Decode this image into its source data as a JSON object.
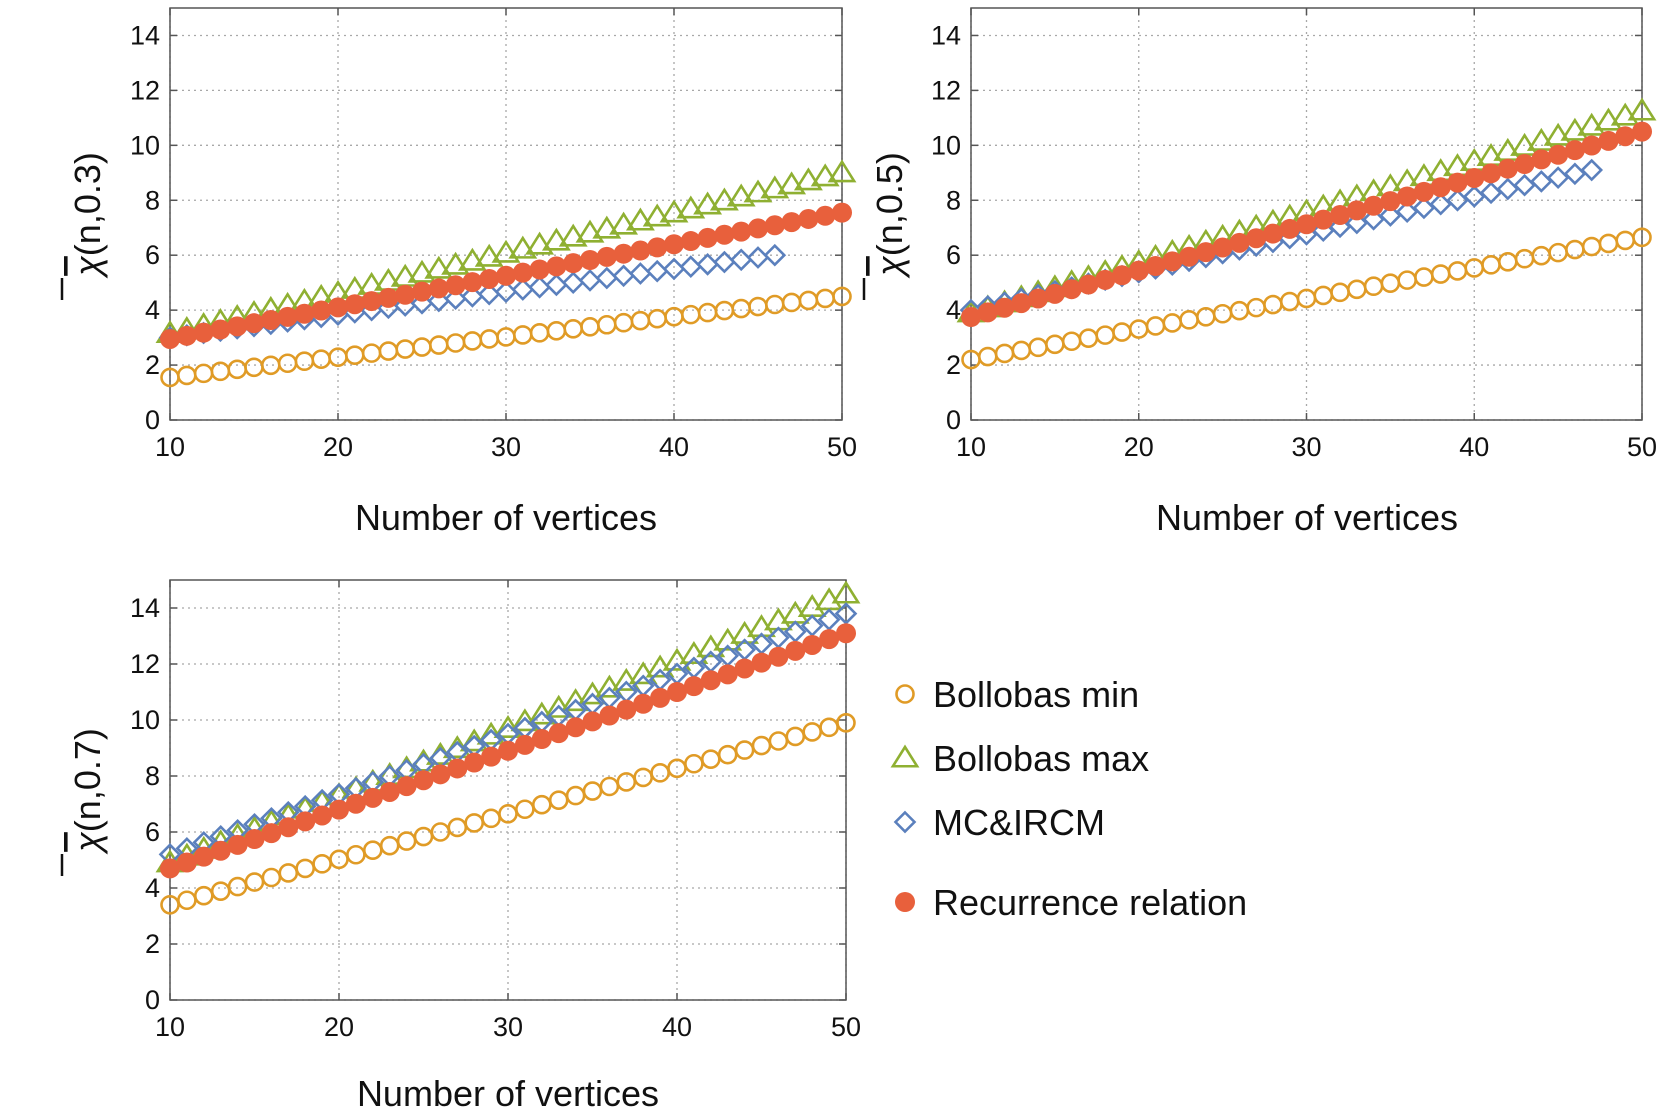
{
  "chart_data": [
    {
      "type": "scatter",
      "panel": "top-left",
      "xlabel": "Number of vertices",
      "ylabel": "χ̄(n,0.3)",
      "ylabel_symbol": "χ",
      "ylabel_args": "(n,0.3)",
      "xlim": [
        10,
        50
      ],
      "ylim": [
        0,
        15
      ],
      "xticks": [
        10,
        20,
        30,
        40,
        50
      ],
      "yticks": [
        0,
        2,
        4,
        6,
        8,
        10,
        12,
        14
      ],
      "grid": true,
      "series": [
        {
          "name": "Bollobas min",
          "x_start": 10,
          "x_end": 50,
          "y_start": 1.55,
          "y_end": 4.5
        },
        {
          "name": "Bollobas max",
          "x_start": 10,
          "x_end": 50,
          "y_start": 3.15,
          "y_end": 9.0
        },
        {
          "name": "MC&IRCM",
          "x_start": 10,
          "x_end": 46,
          "y_start": 3.0,
          "y_end": 6.0
        },
        {
          "name": "Recurrence relation",
          "x_start": 10,
          "x_end": 50,
          "y_start": 2.95,
          "y_end": 7.55
        }
      ]
    },
    {
      "type": "scatter",
      "panel": "top-right",
      "xlabel": "Number of vertices",
      "ylabel": "χ̄(n,0.5)",
      "ylabel_symbol": "χ",
      "ylabel_args": "(n,0.5)",
      "xlim": [
        10,
        50
      ],
      "ylim": [
        0,
        15
      ],
      "xticks": [
        10,
        20,
        30,
        40,
        50
      ],
      "yticks": [
        0,
        2,
        4,
        6,
        8,
        10,
        12,
        14
      ],
      "grid": true,
      "series": [
        {
          "name": "Bollobas min",
          "x_start": 10,
          "x_end": 50,
          "y_start": 2.2,
          "y_end": 6.65
        },
        {
          "name": "Bollobas max",
          "x_start": 10,
          "x_end": 50,
          "y_start": 3.9,
          "y_end": 11.25
        },
        {
          "name": "MC&IRCM",
          "x_start": 10,
          "x_end": 47,
          "y_start": 4.0,
          "y_end": 9.1
        },
        {
          "name": "Recurrence relation",
          "x_start": 10,
          "x_end": 50,
          "y_start": 3.75,
          "y_end": 10.5
        }
      ]
    },
    {
      "type": "scatter",
      "panel": "bottom-left",
      "xlabel": "Number of vertices",
      "ylabel": "χ̄(n,0.7)",
      "ylabel_symbol": "χ",
      "ylabel_args": "(n,0.7)",
      "xlim": [
        10,
        50
      ],
      "ylim": [
        0,
        15
      ],
      "xticks": [
        10,
        20,
        30,
        40,
        50
      ],
      "yticks": [
        0,
        2,
        4,
        6,
        8,
        10,
        12,
        14
      ],
      "grid": true,
      "series": [
        {
          "name": "Bollobas min",
          "x_start": 10,
          "x_end": 50,
          "y_start": 3.4,
          "y_end": 9.9
        },
        {
          "name": "Bollobas max",
          "x_start": 10,
          "x_end": 50,
          "y_start": 4.9,
          "y_end": 14.5
        },
        {
          "name": "MC&IRCM",
          "x_start": 10,
          "x_end": 50,
          "y_start": 5.2,
          "y_end": 13.8
        },
        {
          "name": "Recurrence relation",
          "x_start": 10,
          "x_end": 50,
          "y_start": 4.7,
          "y_end": 13.1
        }
      ]
    }
  ],
  "legend": {
    "placement": "bottom-right",
    "items": [
      {
        "label": "Bollobas min",
        "marker": "open-circle"
      },
      {
        "label": "Bollobas max",
        "marker": "open-triangle"
      },
      {
        "label": "MC&IRCM",
        "marker": "open-diamond"
      },
      {
        "label": "Recurrence relation",
        "marker": "filled-circle"
      }
    ]
  },
  "colors": {
    "Bollobas min": "#e09b26",
    "Bollobas max": "#8fb032",
    "MC&IRCM": "#5b80bd",
    "Recurrence relation": "#e8603c"
  }
}
